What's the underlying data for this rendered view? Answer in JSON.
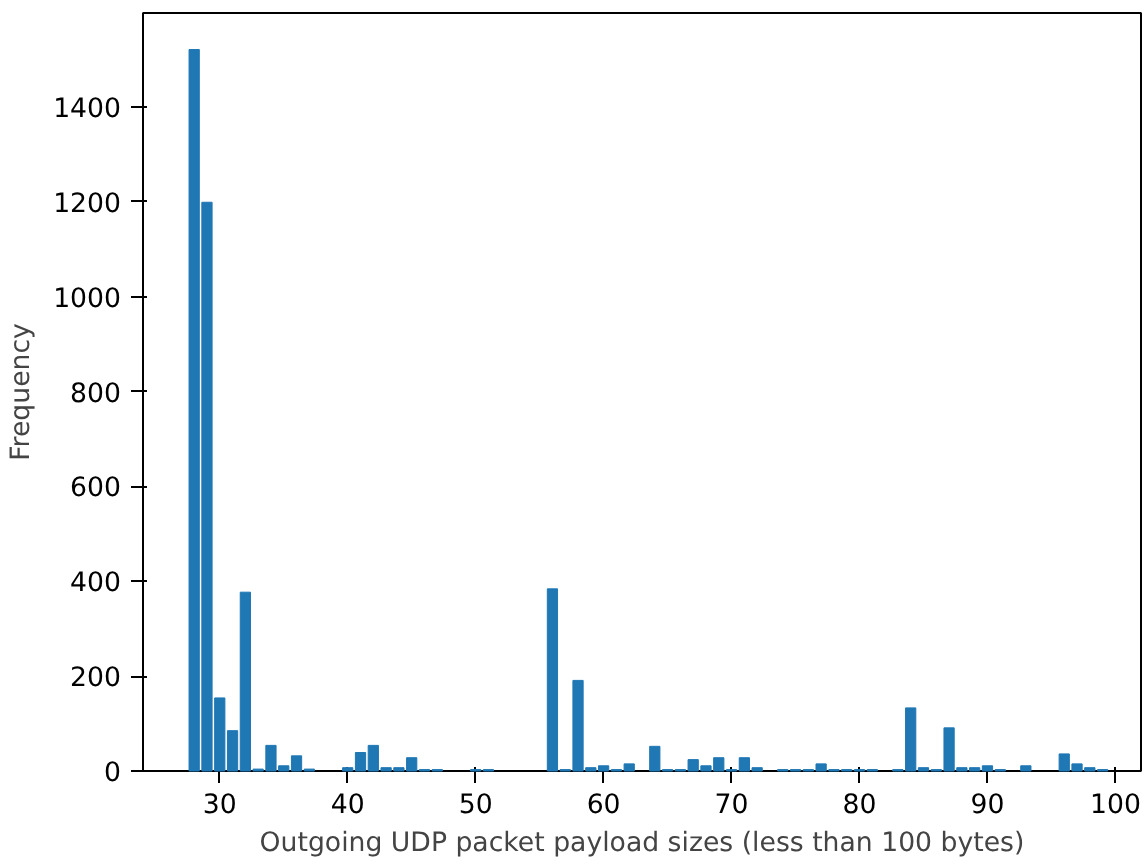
{
  "chart_data": {
    "type": "bar",
    "xlabel": "Outgoing UDP packet payload sizes (less than 100 bytes)",
    "ylabel": "Frequency",
    "color": "#1f77b4",
    "x": [
      28,
      29,
      30,
      31,
      32,
      33,
      34,
      35,
      36,
      37,
      40,
      41,
      42,
      43,
      44,
      45,
      46,
      47,
      50,
      51,
      56,
      57,
      58,
      59,
      60,
      61,
      62,
      64,
      65,
      66,
      67,
      68,
      69,
      70,
      71,
      72,
      74,
      75,
      76,
      77,
      78,
      79,
      80,
      81,
      83,
      84,
      85,
      86,
      87,
      88,
      89,
      90,
      91,
      93,
      96,
      97,
      98,
      99
    ],
    "values": [
      1521,
      1199,
      154,
      85,
      377,
      4,
      54,
      11,
      32,
      4,
      7,
      39,
      54,
      7,
      7,
      28,
      3,
      3,
      3,
      3,
      384,
      3,
      191,
      7,
      11,
      3,
      15,
      52,
      3,
      3,
      24,
      11,
      28,
      3,
      28,
      7,
      3,
      3,
      3,
      15,
      3,
      3,
      3,
      3,
      3,
      133,
      7,
      3,
      91,
      7,
      7,
      11,
      3,
      11,
      36,
      15,
      7,
      3
    ],
    "xlim": [
      24,
      102
    ],
    "ylim": [
      0,
      1598
    ],
    "xticks": [
      30,
      40,
      50,
      60,
      70,
      80,
      90,
      100
    ],
    "yticks": [
      0,
      200,
      400,
      600,
      800,
      1000,
      1200,
      1400
    ],
    "grid": false
  }
}
